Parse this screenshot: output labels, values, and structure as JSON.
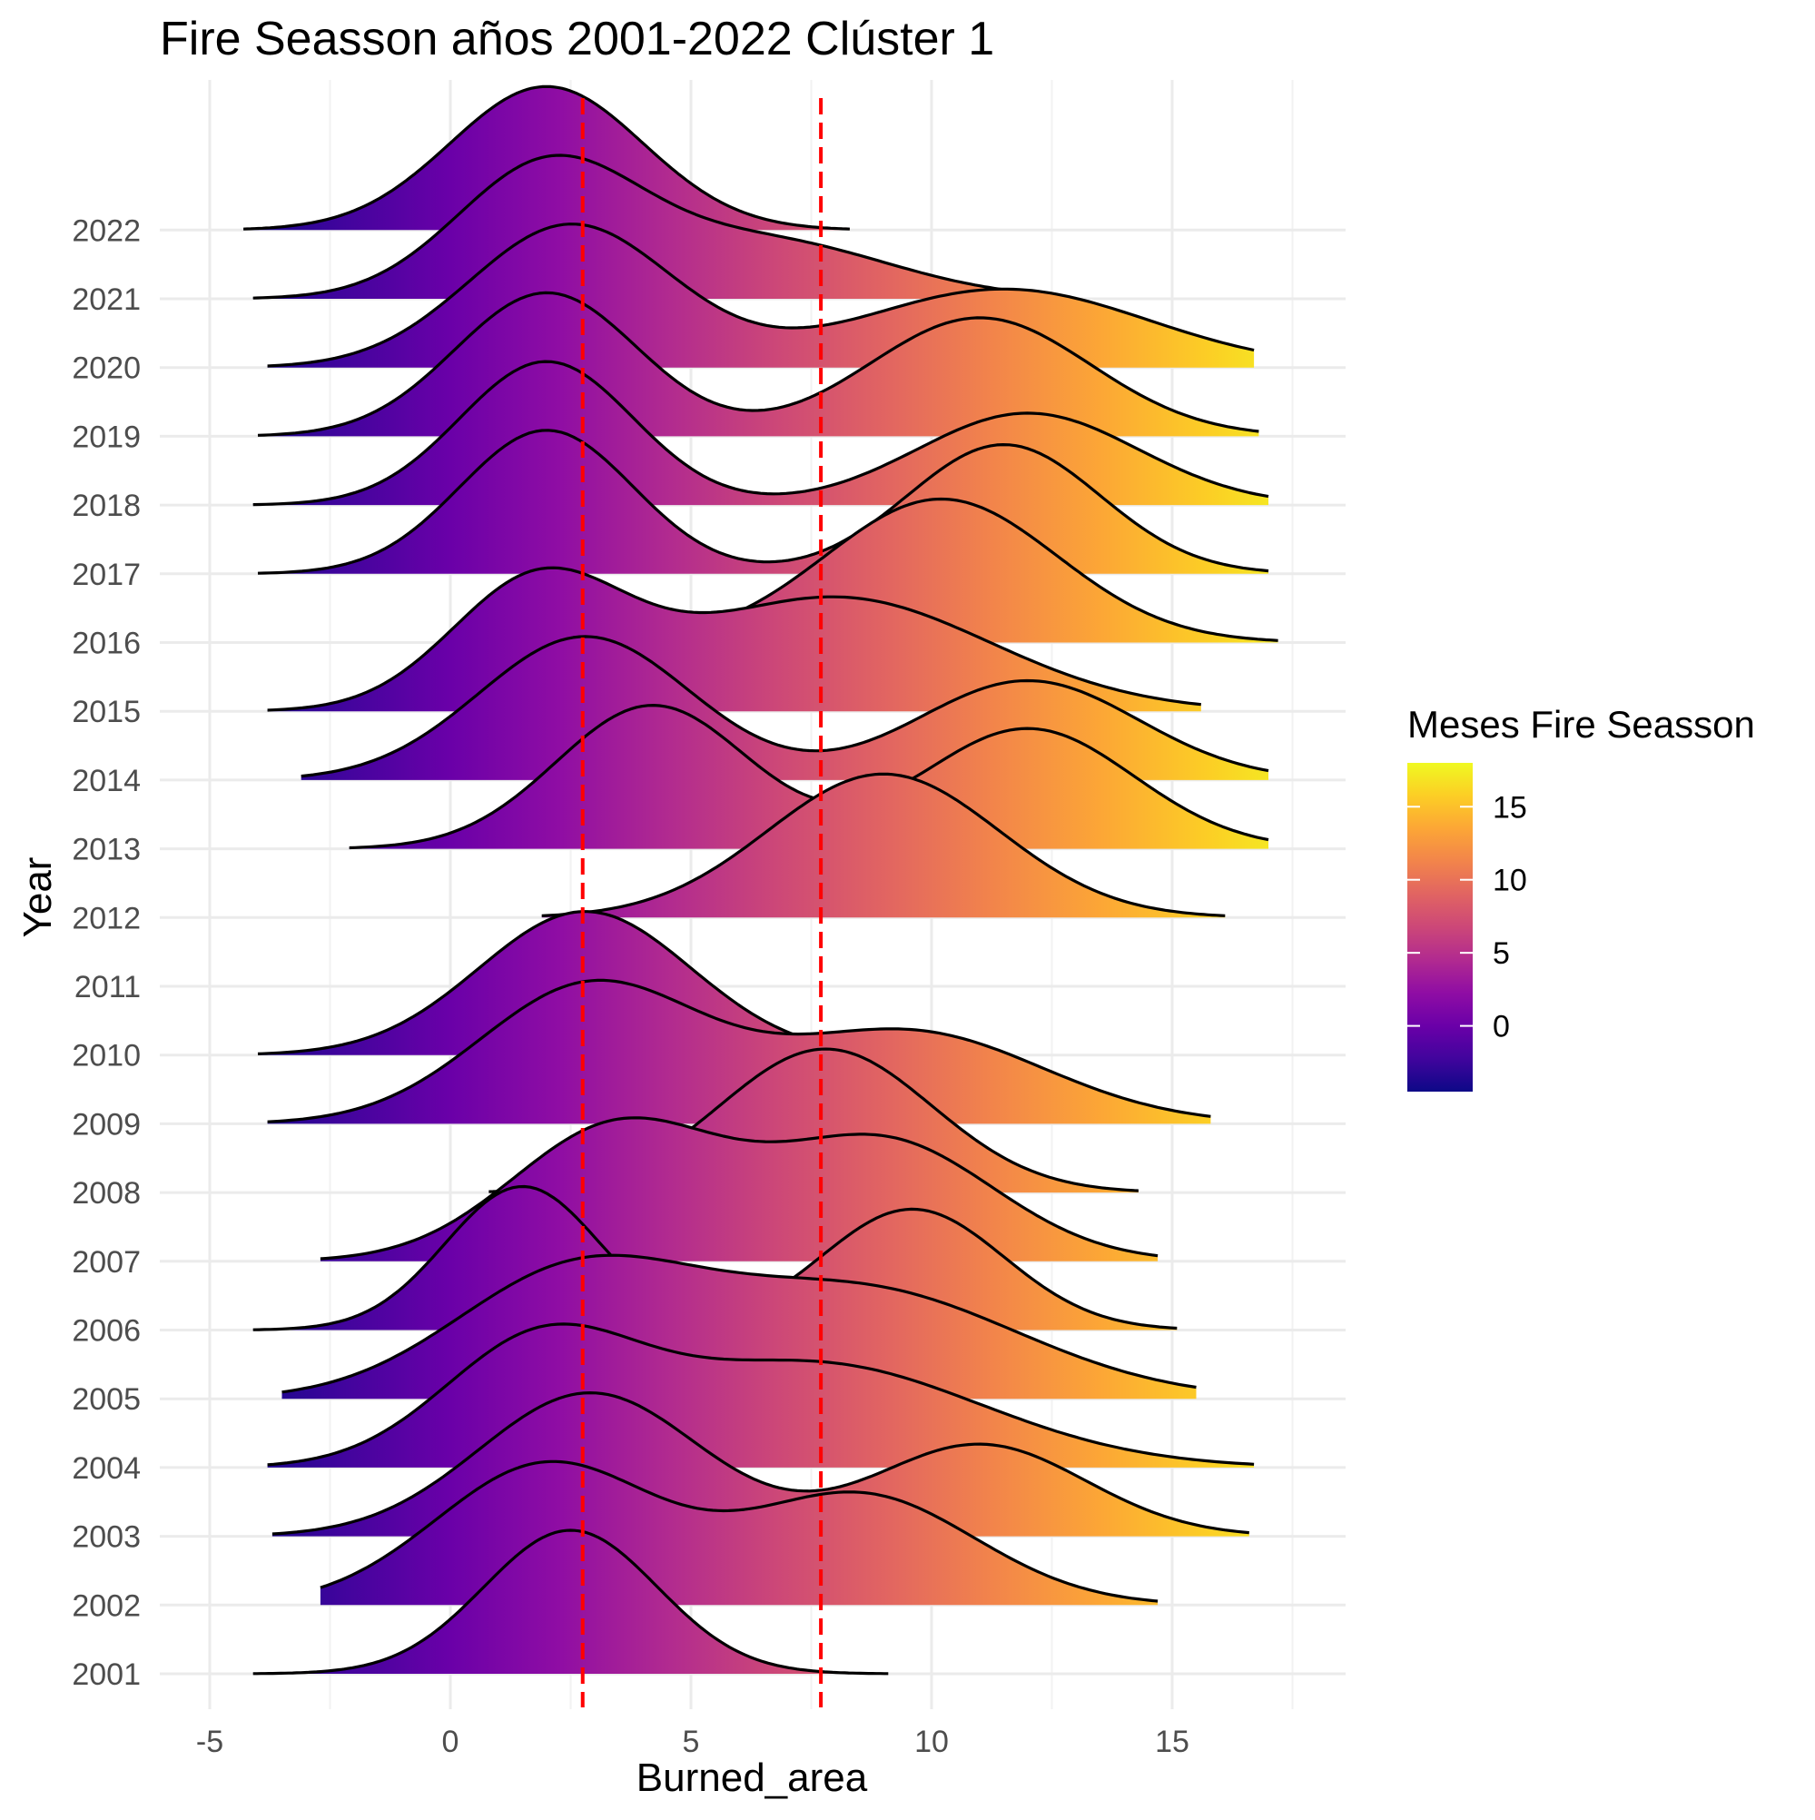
{
  "chart_data": {
    "type": "ridgeline",
    "title": "Fire Seasson años 2001-2022 Clúster 1",
    "xlabel": "Burned_area",
    "ylabel": "Year",
    "xlim": [
      -5.3,
      18.9
    ],
    "x_ticks": [
      -5,
      0,
      5,
      10,
      15
    ],
    "x_tick_labels": [
      "-5",
      "0",
      "5",
      "10",
      "15"
    ],
    "grid": true,
    "vlines": [
      {
        "x": 2.75,
        "color": "#ff0000",
        "style": "dashed"
      },
      {
        "x": 7.7,
        "color": "#ff0000",
        "style": "dashed"
      }
    ],
    "legend": {
      "title": "Meses Fire Seasson",
      "placement": "right",
      "type": "colorbar",
      "palette": "plasma",
      "range": [
        -4.5,
        18
      ],
      "ticks": [
        0,
        5,
        10,
        15
      ],
      "tick_labels": [
        "0",
        "5",
        "10",
        "15"
      ]
    },
    "series": [
      {
        "name": "2001",
        "x_min": -4.1,
        "x_max": 9.1,
        "components": [
          {
            "mean": 2.5,
            "sd": 1.8,
            "weight": 1.0
          }
        ]
      },
      {
        "name": "2002",
        "x_min": -2.7,
        "x_max": 14.7,
        "components": [
          {
            "mean": 2.0,
            "sd": 2.3,
            "weight": 0.55
          },
          {
            "mean": 8.5,
            "sd": 2.4,
            "weight": 0.45
          }
        ]
      },
      {
        "name": "2003",
        "x_min": -3.7,
        "x_max": 16.6,
        "components": [
          {
            "mean": 2.9,
            "sd": 2.3,
            "weight": 0.62
          },
          {
            "mean": 11.0,
            "sd": 2.2,
            "weight": 0.38
          }
        ]
      },
      {
        "name": "2004",
        "x_min": -3.8,
        "x_max": 16.7,
        "components": [
          {
            "mean": 1.8,
            "sd": 2.0,
            "weight": 0.38
          },
          {
            "mean": 7.5,
            "sd": 3.5,
            "weight": 0.62
          }
        ]
      },
      {
        "name": "2005",
        "x_min": -3.5,
        "x_max": 15.5,
        "components": [
          {
            "mean": 2.5,
            "sd": 2.5,
            "weight": 0.45
          },
          {
            "mean": 8.5,
            "sd": 3.3,
            "weight": 0.55
          }
        ]
      },
      {
        "name": "2006",
        "x_min": -4.1,
        "x_max": 15.1,
        "components": [
          {
            "mean": 1.5,
            "sd": 1.6,
            "weight": 0.5
          },
          {
            "mean": 9.6,
            "sd": 1.9,
            "weight": 0.5
          }
        ]
      },
      {
        "name": "2007",
        "x_min": -2.7,
        "x_max": 14.7,
        "components": [
          {
            "mean": 3.5,
            "sd": 2.2,
            "weight": 0.52
          },
          {
            "mean": 9.0,
            "sd": 2.3,
            "weight": 0.48
          }
        ]
      },
      {
        "name": "2008",
        "x_min": 0.8,
        "x_max": 14.3,
        "components": [
          {
            "mean": 7.8,
            "sd": 2.2,
            "weight": 1.0
          }
        ]
      },
      {
        "name": "2009",
        "x_min": -3.8,
        "x_max": 15.8,
        "components": [
          {
            "mean": 2.9,
            "sd": 2.3,
            "weight": 0.55
          },
          {
            "mean": 9.5,
            "sd": 2.8,
            "weight": 0.45
          }
        ]
      },
      {
        "name": "2010",
        "x_min": -4.0,
        "x_max": 10.8,
        "components": [
          {
            "mean": 2.8,
            "sd": 2.2,
            "weight": 1.0
          }
        ]
      },
      {
        "name": "2011",
        "x_min": null,
        "x_max": null,
        "components": []
      },
      {
        "name": "2012",
        "x_min": 1.9,
        "x_max": 16.1,
        "components": [
          {
            "mean": 9.0,
            "sd": 2.4,
            "weight": 1.0
          }
        ]
      },
      {
        "name": "2013",
        "x_min": -2.1,
        "x_max": 17.0,
        "components": [
          {
            "mean": 4.2,
            "sd": 2.0,
            "weight": 0.52
          },
          {
            "mean": 12.0,
            "sd": 2.2,
            "weight": 0.48
          }
        ]
      },
      {
        "name": "2014",
        "x_min": -3.1,
        "x_max": 17.0,
        "components": [
          {
            "mean": 2.8,
            "sd": 2.2,
            "weight": 0.58
          },
          {
            "mean": 12.0,
            "sd": 2.3,
            "weight": 0.42
          }
        ]
      },
      {
        "name": "2015",
        "x_min": -3.8,
        "x_max": 15.6,
        "components": [
          {
            "mean": 1.8,
            "sd": 1.8,
            "weight": 0.38
          },
          {
            "mean": 8.0,
            "sd": 3.2,
            "weight": 0.62
          }
        ]
      },
      {
        "name": "2016",
        "x_min": 3.7,
        "x_max": 17.2,
        "components": [
          {
            "mean": 10.2,
            "sd": 2.4,
            "weight": 1.0
          }
        ]
      },
      {
        "name": "2017",
        "x_min": -4.0,
        "x_max": 17.0,
        "components": [
          {
            "mean": 2.0,
            "sd": 1.8,
            "weight": 0.5
          },
          {
            "mean": 11.5,
            "sd": 2.0,
            "weight": 0.5
          }
        ]
      },
      {
        "name": "2018",
        "x_min": -4.1,
        "x_max": 17.0,
        "components": [
          {
            "mean": 2.0,
            "sd": 1.8,
            "weight": 0.55
          },
          {
            "mean": 12.0,
            "sd": 2.3,
            "weight": 0.45
          }
        ]
      },
      {
        "name": "2019",
        "x_min": -4.0,
        "x_max": 16.8,
        "components": [
          {
            "mean": 2.0,
            "sd": 1.9,
            "weight": 0.5
          },
          {
            "mean": 11.0,
            "sd": 2.3,
            "weight": 0.5
          }
        ]
      },
      {
        "name": "2020",
        "x_min": -3.8,
        "x_max": 16.7,
        "components": [
          {
            "mean": 2.5,
            "sd": 2.1,
            "weight": 0.56
          },
          {
            "mean": 11.5,
            "sd": 3.0,
            "weight": 0.44
          }
        ]
      },
      {
        "name": "2021",
        "x_min": -4.1,
        "x_max": 11.9,
        "components": [
          {
            "mean": 2.0,
            "sd": 1.9,
            "weight": 0.62
          },
          {
            "mean": 6.5,
            "sd": 2.6,
            "weight": 0.38
          }
        ]
      },
      {
        "name": "2022",
        "x_min": -4.3,
        "x_max": 8.3,
        "components": [
          {
            "mean": 2.0,
            "sd": 2.0,
            "weight": 1.0
          }
        ]
      }
    ]
  }
}
